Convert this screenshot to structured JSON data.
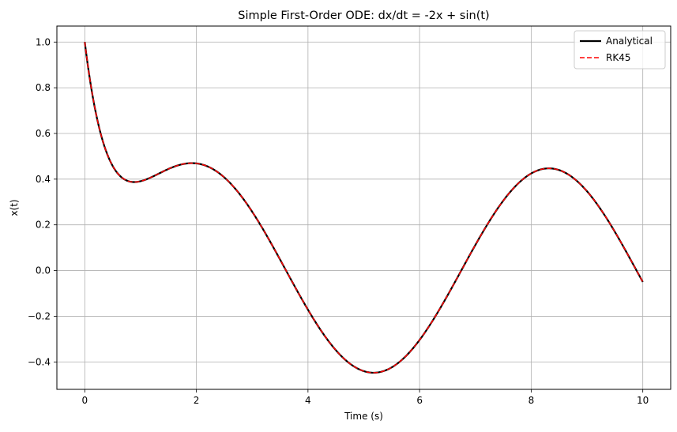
{
  "chart_data": {
    "type": "line",
    "title": "Simple First-Order ODE: dx/dt = -2x + sin(t)",
    "xlabel": "Time (s)",
    "ylabel": "x(t)",
    "xlim": [
      -0.5,
      10.5
    ],
    "ylim": [
      -0.52,
      1.07
    ],
    "xticks": [
      0,
      2,
      4,
      6,
      8,
      10
    ],
    "xtick_labels": [
      "0",
      "2",
      "4",
      "6",
      "8",
      "10"
    ],
    "yticks": [
      -0.4,
      -0.2,
      0.0,
      0.2,
      0.4,
      0.6,
      0.8,
      1.0
    ],
    "ytick_labels": [
      "−0.4",
      "−0.2",
      "0.0",
      "0.2",
      "0.4",
      "0.6",
      "0.8",
      "1.0"
    ],
    "grid": true,
    "legend_position": "top-right",
    "t_range": [
      0,
      10
    ],
    "series": [
      {
        "name": "Analytical",
        "color": "#000000",
        "style": "solid"
      },
      {
        "name": "RK45",
        "color": "#ff0000",
        "style": "dashed"
      }
    ],
    "sample_points": [
      {
        "x": 0,
        "y": 1.0
      },
      {
        "x": 0.9,
        "y": 0.39
      },
      {
        "x": 1.9,
        "y": 0.47
      },
      {
        "x": 4.0,
        "y": -0.18
      },
      {
        "x": 5.2,
        "y": -0.45
      },
      {
        "x": 6.0,
        "y": -0.3
      },
      {
        "x": 8.3,
        "y": 0.45
      },
      {
        "x": 10.0,
        "y": -0.05
      }
    ]
  }
}
